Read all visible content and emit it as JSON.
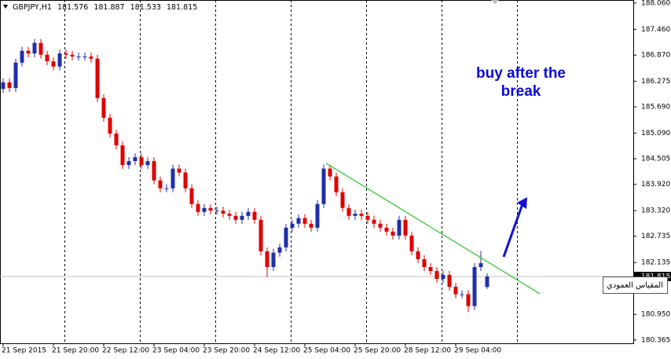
{
  "chart_data": {
    "type": "candlestick",
    "symbol": "GBPJPY,H1",
    "categories": [
      "21 Sep 2015",
      null,
      null,
      null,
      null,
      null,
      null,
      null,
      "21 Sep 20:00",
      null,
      null,
      null,
      null,
      null,
      null,
      null,
      "22 Sep 12:00",
      null,
      null,
      null,
      null,
      null,
      null,
      null,
      "23 Sep 04:00",
      null,
      null,
      null,
      null,
      null,
      null,
      null,
      "23 Sep 20:00",
      null,
      null,
      null,
      null,
      null,
      null,
      null,
      "24 Sep 12:00",
      null,
      null,
      null,
      null,
      null,
      null,
      null,
      "25 Sep 04:00",
      null,
      null,
      null,
      null,
      null,
      null,
      null,
      "25 Sep 20:00",
      null,
      null,
      null,
      null,
      null,
      null,
      null,
      "28 Sep 12:00",
      null,
      null,
      null,
      null,
      null,
      null,
      null,
      "29 Sep 04:00",
      null,
      null,
      null,
      null,
      null
    ],
    "open": [
      186.1,
      186.25,
      186.12,
      186.7,
      186.97,
      186.91,
      187.15,
      186.88,
      186.73,
      186.61,
      186.91,
      186.88,
      186.84,
      186.84,
      186.84,
      186.79,
      185.89,
      185.44,
      185.08,
      184.81,
      184.36,
      184.45,
      184.54,
      184.36,
      184.45,
      184.01,
      183.83,
      183.83,
      184.28,
      184.19,
      183.83,
      183.47,
      183.29,
      183.38,
      183.32,
      183.32,
      183.25,
      183.2,
      183.11,
      183.2,
      183.29,
      183.11,
      182.39,
      182.03,
      182.36,
      182.48,
      182.93,
      183.02,
      183.15,
      183.02,
      182.93,
      183.47,
      184.28,
      184.1,
      183.74,
      183.38,
      183.2,
      183.25,
      183.2,
      183.11,
      183.02,
      182.93,
      182.84,
      182.75,
      183.11,
      182.75,
      182.39,
      182.21,
      182.03,
      181.94,
      181.76,
      181.85,
      181.58,
      181.41,
      181.41,
      181.14,
      182.03,
      181.576
    ],
    "high": [
      186.34,
      186.34,
      186.79,
      187.06,
      187.06,
      187.24,
      187.24,
      186.97,
      186.82,
      187.0,
      187.0,
      186.97,
      186.93,
      186.93,
      186.93,
      186.88,
      185.98,
      185.53,
      185.17,
      184.9,
      184.54,
      184.63,
      184.63,
      184.54,
      184.54,
      184.1,
      183.92,
      184.37,
      184.37,
      184.28,
      183.92,
      183.56,
      183.47,
      183.47,
      183.41,
      183.41,
      183.34,
      183.29,
      183.29,
      183.38,
      183.38,
      183.2,
      182.48,
      182.45,
      182.57,
      183.02,
      183.11,
      183.24,
      183.24,
      183.11,
      183.56,
      184.37,
      184.37,
      184.19,
      183.83,
      183.47,
      183.34,
      183.34,
      183.29,
      183.2,
      183.11,
      183.02,
      182.93,
      183.2,
      183.2,
      182.84,
      182.48,
      182.3,
      182.12,
      182.03,
      181.94,
      181.94,
      181.67,
      181.5,
      181.5,
      182.12,
      182.4,
      181.887
    ],
    "low": [
      186.01,
      186.03,
      186.03,
      186.61,
      186.82,
      186.82,
      186.79,
      186.64,
      186.52,
      186.52,
      186.79,
      186.75,
      186.75,
      186.75,
      186.7,
      185.8,
      185.35,
      184.99,
      184.72,
      184.27,
      184.27,
      184.36,
      184.27,
      184.27,
      183.92,
      183.74,
      183.74,
      183.74,
      184.1,
      183.74,
      183.38,
      183.2,
      183.2,
      183.23,
      183.23,
      183.16,
      183.11,
      183.02,
      183.02,
      183.11,
      183.02,
      182.3,
      181.8,
      181.94,
      182.27,
      182.39,
      182.84,
      182.93,
      182.93,
      182.84,
      182.84,
      183.38,
      184.01,
      183.65,
      183.29,
      183.11,
      183.11,
      183.11,
      183.02,
      182.93,
      182.84,
      182.75,
      182.66,
      182.66,
      182.66,
      182.3,
      182.12,
      181.94,
      181.85,
      181.67,
      181.67,
      181.49,
      181.32,
      181.32,
      181.0,
      181.05,
      181.94,
      181.533
    ],
    "close": [
      186.25,
      186.12,
      186.7,
      186.97,
      186.91,
      187.15,
      186.88,
      186.73,
      186.61,
      186.91,
      186.88,
      186.84,
      186.84,
      186.84,
      186.79,
      185.89,
      185.44,
      185.08,
      184.81,
      184.36,
      184.45,
      184.54,
      184.36,
      184.45,
      184.01,
      183.83,
      183.83,
      184.28,
      184.19,
      183.83,
      183.47,
      183.29,
      183.38,
      183.32,
      183.32,
      183.25,
      183.2,
      183.11,
      183.2,
      183.29,
      183.11,
      182.39,
      182.03,
      182.36,
      182.48,
      182.93,
      183.02,
      183.15,
      183.02,
      182.93,
      183.47,
      184.28,
      184.1,
      183.74,
      183.38,
      183.2,
      183.25,
      183.2,
      183.11,
      183.02,
      182.93,
      182.84,
      182.75,
      183.11,
      182.75,
      182.39,
      182.21,
      182.03,
      181.94,
      181.76,
      181.85,
      181.58,
      181.41,
      181.41,
      181.14,
      182.03,
      182.12,
      181.815
    ],
    "up_color": "#1f2fa8",
    "down_color": "#e00000",
    "xlim": [
      -0.5,
      100.25
    ],
    "ylim": [
      180.29,
      188.13
    ],
    "yticks": [
      {
        "value": 188.06,
        "label": "188.060"
      },
      {
        "value": 187.46,
        "label": "187.460"
      },
      {
        "value": 186.87,
        "label": "186.870"
      },
      186.275,
      {
        "value": 185.69,
        "label": "185.690"
      },
      {
        "value": 185.09,
        "label": "185.090"
      },
      184.505,
      {
        "value": 183.92,
        "label": "183.920"
      },
      {
        "value": 183.32,
        "label": "183.320"
      },
      182.735,
      182.135,
      {
        "value": 180.95,
        "label": "180.950"
      },
      180.365
    ],
    "trendline": {
      "x": [
        51.4,
        85.4
      ],
      "y": [
        184.4,
        181.42
      ],
      "color": "#33cc33"
    },
    "annotation": [
      "buy after the",
      "break"
    ],
    "axis_tooltip": "المقياس العمودي"
  }
}
